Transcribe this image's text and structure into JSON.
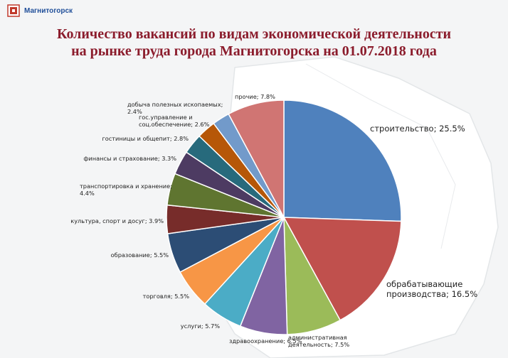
{
  "header": {
    "logo_text": "Магнитогорск",
    "title_line1": "Количество вакансий по видам экономической деятельности",
    "title_line2": "на рынке труда города Магнитогорска на 01.07.2018 года"
  },
  "chart_data": {
    "type": "pie",
    "title": "Количество вакансий по видам экономической деятельности на рынке труда города Магнитогорска на 01.07.2018 года",
    "unit": "%",
    "slices": [
      {
        "name": "строительство",
        "value": 25.5,
        "label": "строительство; 25.5%",
        "color": "#4f81bd"
      },
      {
        "name": "обрабатывающие производства",
        "value": 16.5,
        "label": "обрабатывающие производства; 16.5%",
        "color": "#c0504d"
      },
      {
        "name": "административная деятельность",
        "value": 7.5,
        "label": "административная деятельность; 7.5%",
        "color": "#9bbb59"
      },
      {
        "name": "здравоохранение",
        "value": 6.5,
        "label": "здравоохранение; 6.5%",
        "color": "#8064a2"
      },
      {
        "name": "услуги",
        "value": 5.7,
        "label": "услуги; 5.7%",
        "color": "#4bacc6"
      },
      {
        "name": "торговля",
        "value": 5.5,
        "label": "торговля; 5.5%",
        "color": "#f79646"
      },
      {
        "name": "образование",
        "value": 5.5,
        "label": "образование; 5.5%",
        "color": "#2c4d75"
      },
      {
        "name": "культура, спорт и досуг",
        "value": 3.9,
        "label": "культура, спорт и досуг; 3.9%",
        "color": "#772c2a"
      },
      {
        "name": "транспортировка и хранение",
        "value": 4.4,
        "label": "транспортировка и хранение; 4.4%",
        "color": "#5f7530"
      },
      {
        "name": "финансы и страхование",
        "value": 3.3,
        "label": "финансы и страхование; 3.3%",
        "color": "#4d3b62"
      },
      {
        "name": "гостиницы и общепит",
        "value": 2.8,
        "label": "гостиницы и общепит; 2.8%",
        "color": "#276a7c"
      },
      {
        "name": "гос.управление и соц.обеспечение",
        "value": 2.6,
        "label": "гос.управление и соц.обеспечение; 2.6%",
        "color": "#b65708"
      },
      {
        "name": "добыча полезных ископаемых",
        "value": 2.4,
        "label": "добыча полезных ископаемых; 2.4%",
        "color": "#729aca"
      },
      {
        "name": "прочие",
        "value": 7.8,
        "label": "прочие; 7.8%",
        "color": "#d07573"
      }
    ]
  }
}
